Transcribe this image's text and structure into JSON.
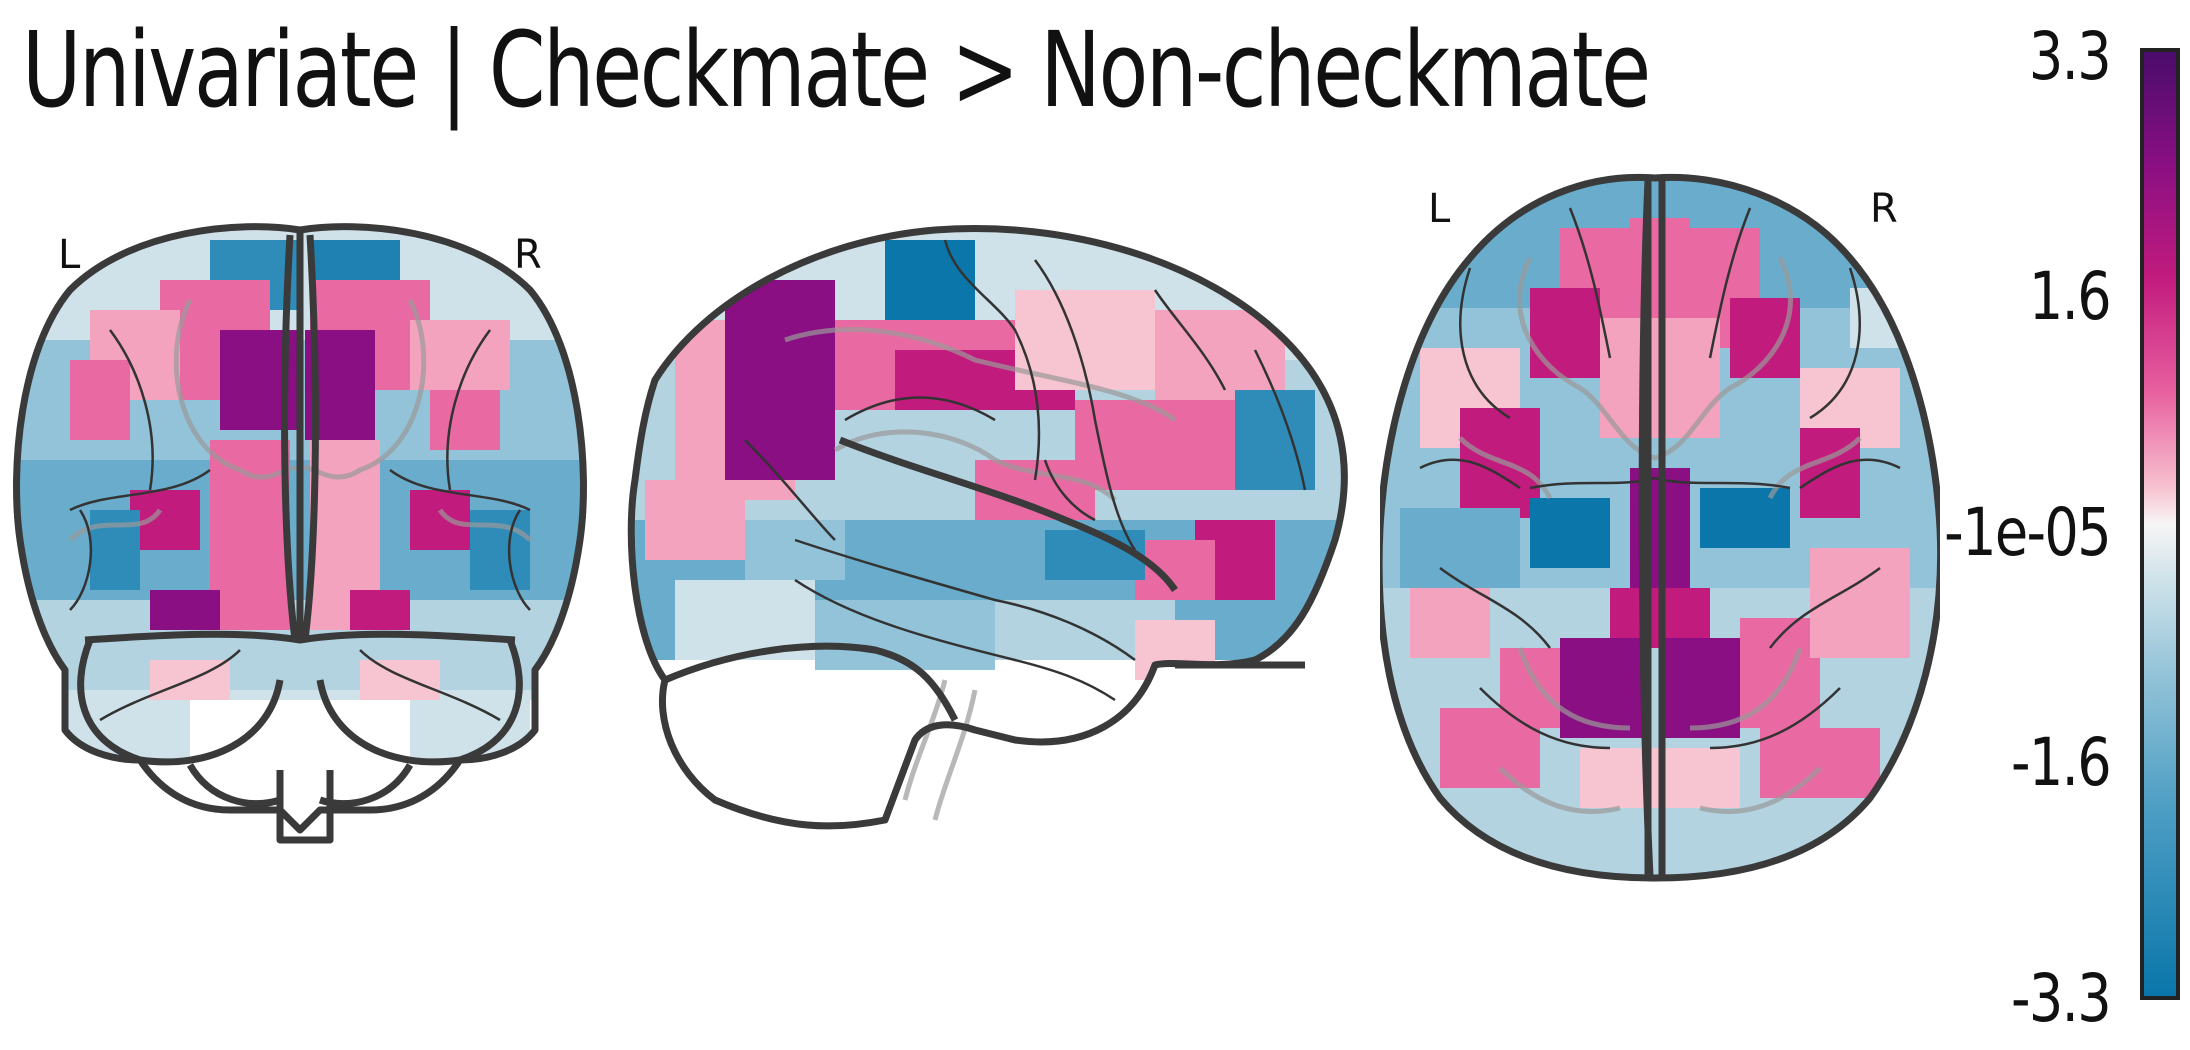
{
  "title": "Univariate | Checkmate > Non-checkmate",
  "views": {
    "coronal": {
      "left_label": "L",
      "right_label": "R"
    },
    "sagittal": {},
    "axial": {
      "left_label": "L",
      "right_label": "R"
    }
  },
  "colorbar": {
    "colormap": "blue-white-pink-purple (diverging)",
    "ticks": [
      "3.3",
      "1.6",
      "-1e-05",
      "-1.6",
      "-3.3"
    ],
    "range": [
      -3.3,
      3.3
    ]
  },
  "colors": {
    "dark_purple": "#6a0c72",
    "magenta": "#c2187e",
    "pink": "#e96aa2",
    "light_pink": "#f7c4d1",
    "near_white": "#eaf1f4",
    "light_blue": "#b3d3e1",
    "mid_blue": "#6aaccb",
    "blue": "#2f8bb8",
    "dark_blue": "#0a76aa",
    "outline": "#3a3a3a"
  }
}
